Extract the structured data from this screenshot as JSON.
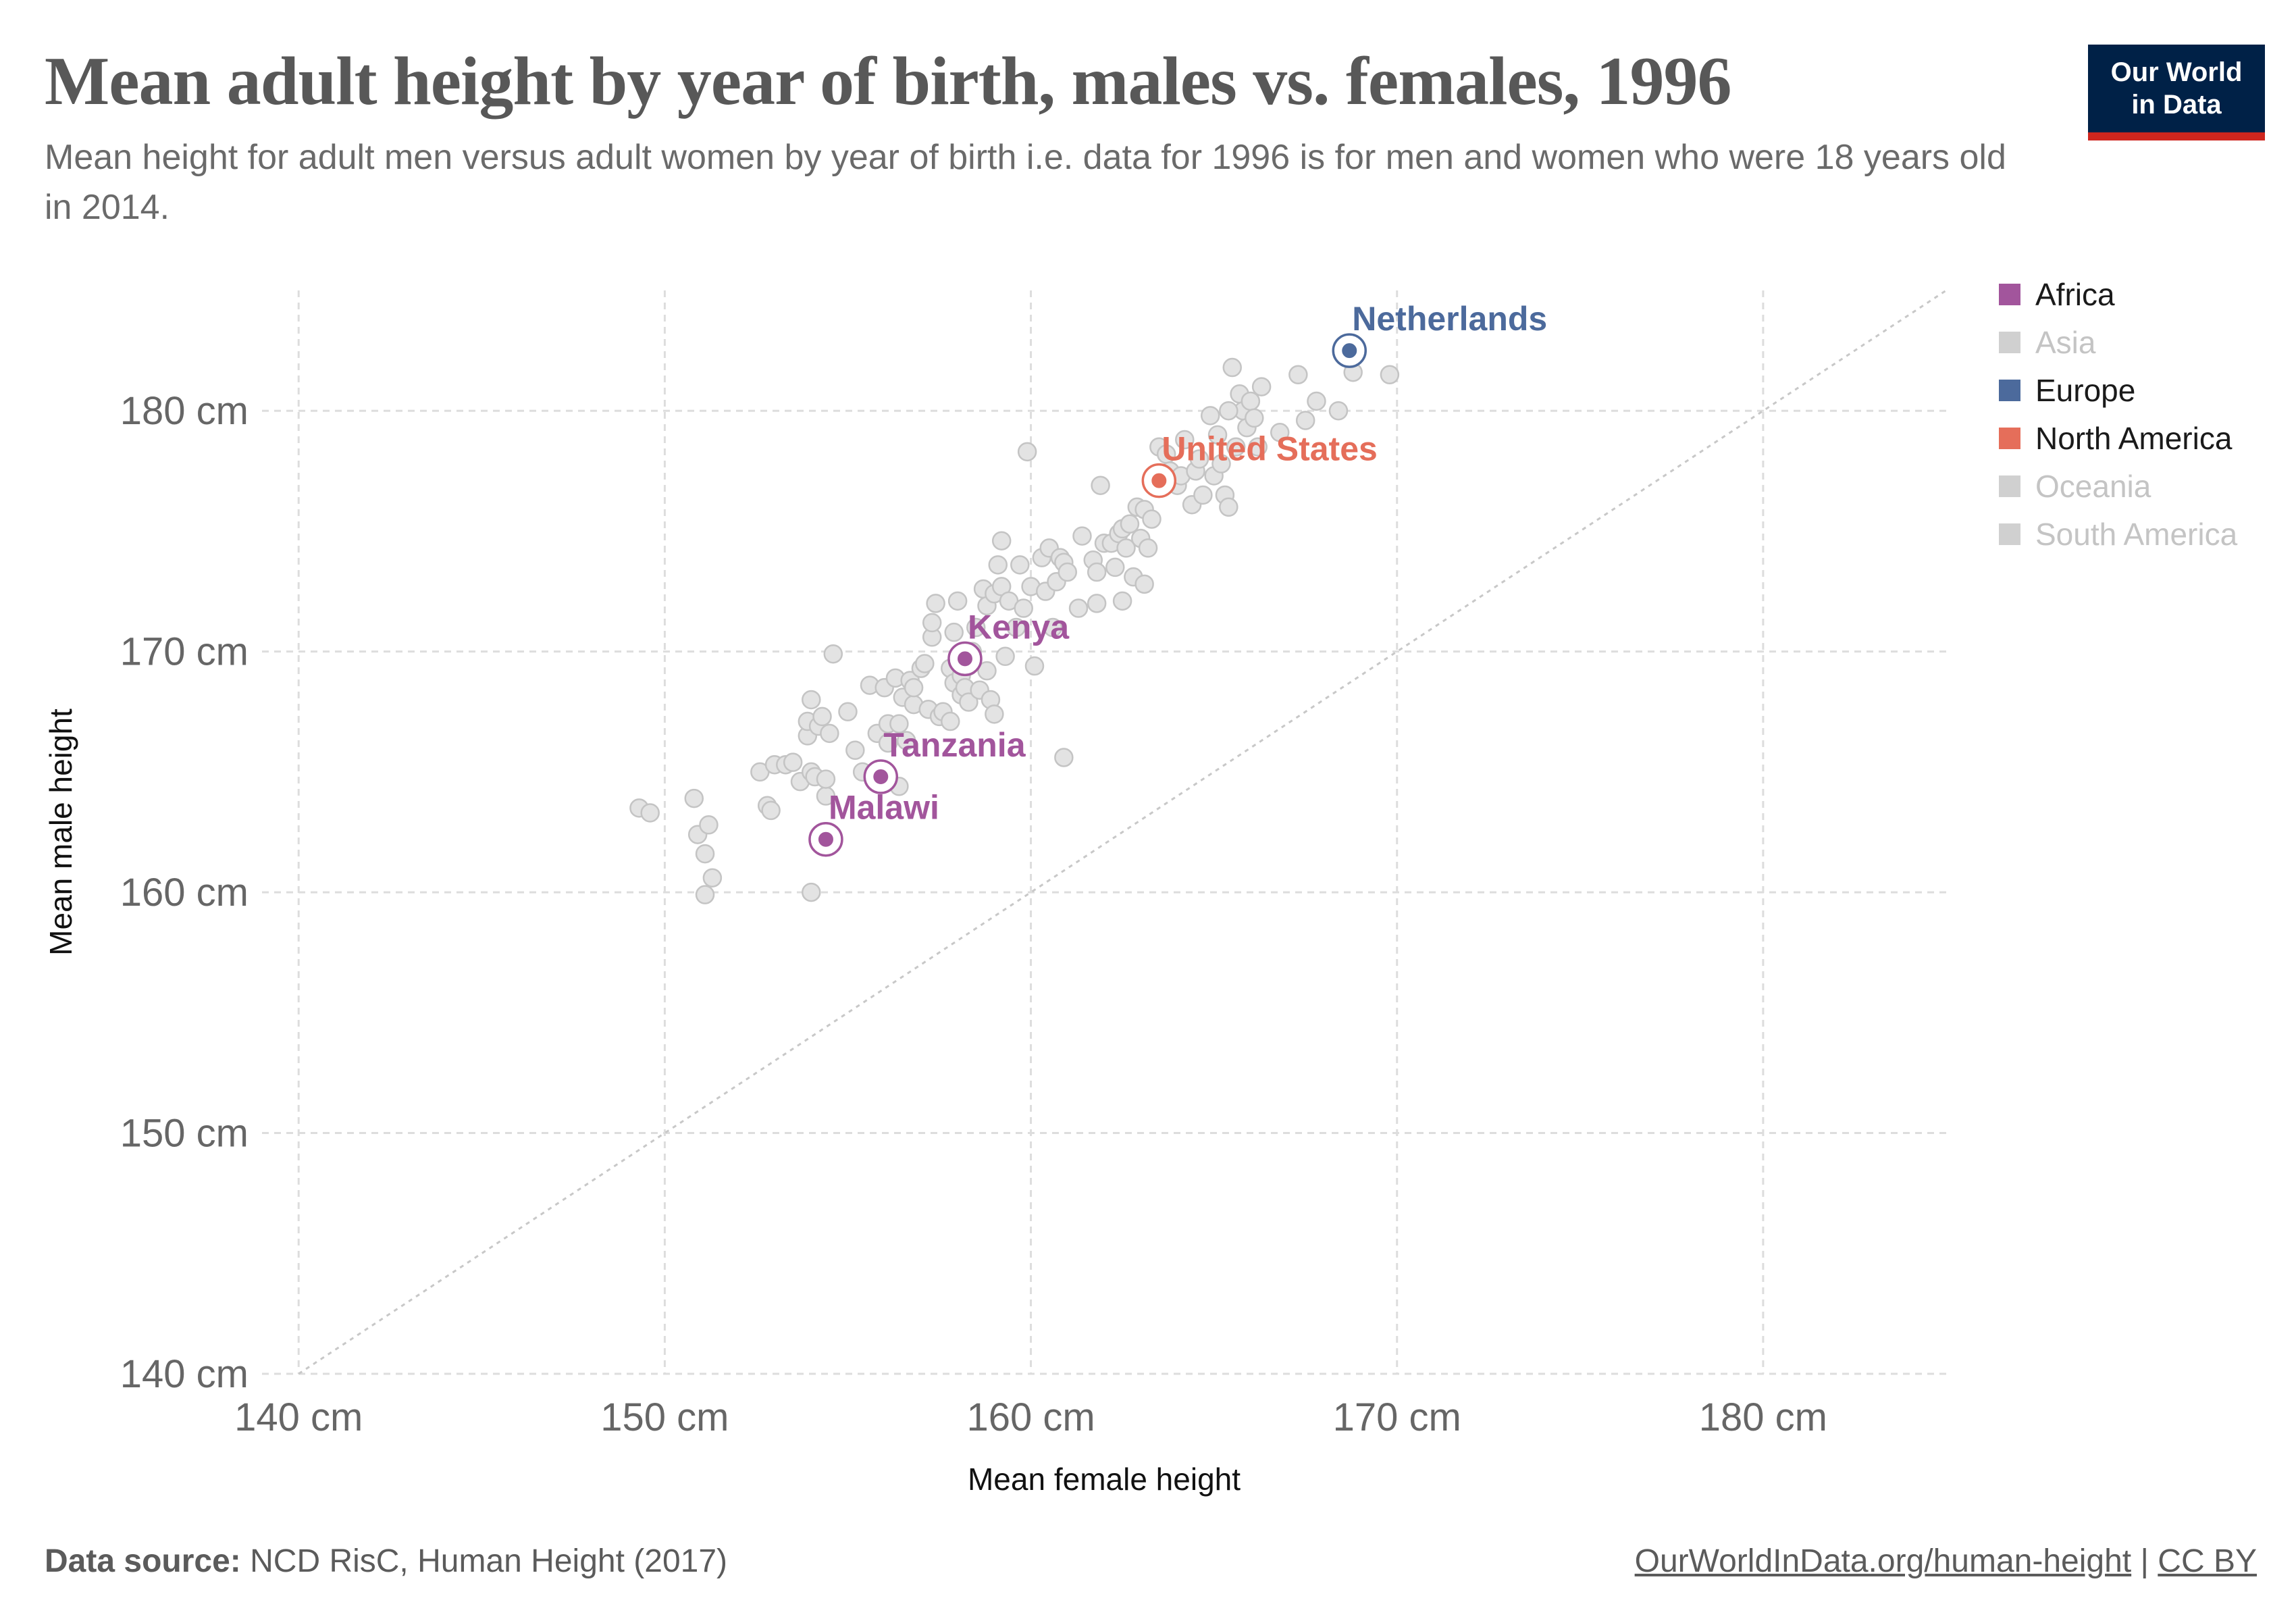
{
  "header": {
    "title": "Mean adult height by year of birth, males vs. females, 1996",
    "subtitle": "Mean height for adult men versus adult women by year of birth i.e. data for 1996 is for men and women who were 18 years old in 2014."
  },
  "logo": {
    "text": "Our World\nin Data",
    "bg_color": "#002147",
    "accent_color": "#ce261e"
  },
  "legend": {
    "items": [
      {
        "label": "Africa",
        "color": "#a2559c",
        "active": true
      },
      {
        "label": "Asia",
        "color": "#d0d0d0",
        "active": false
      },
      {
        "label": "Europe",
        "color": "#4c6a9c",
        "active": true
      },
      {
        "label": "North America",
        "color": "#e56e5a",
        "active": true
      },
      {
        "label": "Oceania",
        "color": "#d0d0d0",
        "active": false
      },
      {
        "label": "South America",
        "color": "#d0d0d0",
        "active": false
      }
    ]
  },
  "footer": {
    "source_label": "Data source:",
    "source_text": "NCD RisC, Human Height (2017)",
    "link_text": "OurWorldInData.org/human-height",
    "separator": "|",
    "license_text": "CC BY"
  },
  "chart_data": {
    "type": "scatter",
    "xlabel": "Mean female height",
    "ylabel": "Mean male height",
    "xlim": [
      139,
      185
    ],
    "ylim": [
      140,
      185
    ],
    "x_ticks": [
      140,
      150,
      160,
      170,
      180
    ],
    "y_ticks": [
      140,
      150,
      160,
      170,
      180
    ],
    "x_tick_labels": [
      "140 cm",
      "150 cm",
      "160 cm",
      "170 cm",
      "180 cm"
    ],
    "y_tick_labels": [
      "140 cm",
      "150 cm",
      "160 cm",
      "170 cm",
      "180 cm"
    ],
    "grid": true,
    "reference_line": "y = x",
    "highlighted": [
      {
        "label": "Netherlands",
        "x": 168.7,
        "y": 182.5,
        "color": "#4c6a9c"
      },
      {
        "label": "United States",
        "x": 163.5,
        "y": 177.1,
        "color": "#e56e5a"
      },
      {
        "label": "Kenya",
        "x": 158.2,
        "y": 169.7,
        "color": "#a2559c"
      },
      {
        "label": "Tanzania",
        "x": 155.9,
        "y": 164.8,
        "color": "#a2559c"
      },
      {
        "label": "Malawi",
        "x": 154.4,
        "y": 162.2,
        "color": "#a2559c"
      }
    ],
    "background_points": [
      [
        149.3,
        163.5
      ],
      [
        149.6,
        163.3
      ],
      [
        150.8,
        163.9
      ],
      [
        150.9,
        162.4
      ],
      [
        151.2,
        162.8
      ],
      [
        151.1,
        161.6
      ],
      [
        151.3,
        160.6
      ],
      [
        151.1,
        159.9
      ],
      [
        152.6,
        165.0
      ],
      [
        152.8,
        163.6
      ],
      [
        152.9,
        163.4
      ],
      [
        153.0,
        165.3
      ],
      [
        153.3,
        165.3
      ],
      [
        153.5,
        165.4
      ],
      [
        153.7,
        164.6
      ],
      [
        153.9,
        166.5
      ],
      [
        153.9,
        167.1
      ],
      [
        154.0,
        168.0
      ],
      [
        154.0,
        165.0
      ],
      [
        154.1,
        164.8
      ],
      [
        154.2,
        166.9
      ],
      [
        154.3,
        167.3
      ],
      [
        154.4,
        164.0
      ],
      [
        154.5,
        166.6
      ],
      [
        154.4,
        164.7
      ],
      [
        154.6,
        169.9
      ],
      [
        154.0,
        160.0
      ],
      [
        155.0,
        167.5
      ],
      [
        155.2,
        165.9
      ],
      [
        155.4,
        165.0
      ],
      [
        155.6,
        168.6
      ],
      [
        155.8,
        166.6
      ],
      [
        156.0,
        168.5
      ],
      [
        156.1,
        167.0
      ],
      [
        156.1,
        166.2
      ],
      [
        156.3,
        168.9
      ],
      [
        156.4,
        167.0
      ],
      [
        156.4,
        164.4
      ],
      [
        156.5,
        168.1
      ],
      [
        156.6,
        166.3
      ],
      [
        156.7,
        168.8
      ],
      [
        156.8,
        167.8
      ],
      [
        156.8,
        168.5
      ],
      [
        157.0,
        169.3
      ],
      [
        157.1,
        169.5
      ],
      [
        157.2,
        167.6
      ],
      [
        157.3,
        170.6
      ],
      [
        157.3,
        171.2
      ],
      [
        157.4,
        172.0
      ],
      [
        157.5,
        167.3
      ],
      [
        157.6,
        167.5
      ],
      [
        157.8,
        167.1
      ],
      [
        157.8,
        169.3
      ],
      [
        157.9,
        168.7
      ],
      [
        157.9,
        170.8
      ],
      [
        158.0,
        172.1
      ],
      [
        158.1,
        168.2
      ],
      [
        158.1,
        169.0
      ],
      [
        158.2,
        168.5
      ],
      [
        158.3,
        169.4
      ],
      [
        158.3,
        167.9
      ],
      [
        158.4,
        170.0
      ],
      [
        158.5,
        171.0
      ],
      [
        158.6,
        168.4
      ],
      [
        158.7,
        172.6
      ],
      [
        158.8,
        171.9
      ],
      [
        158.8,
        169.2
      ],
      [
        158.9,
        168.0
      ],
      [
        159.0,
        167.4
      ],
      [
        159.0,
        172.4
      ],
      [
        159.1,
        173.6
      ],
      [
        159.2,
        172.7
      ],
      [
        159.2,
        174.6
      ],
      [
        159.3,
        169.8
      ],
      [
        159.4,
        172.1
      ],
      [
        159.6,
        171.0
      ],
      [
        159.7,
        173.6
      ],
      [
        159.8,
        171.8
      ],
      [
        160.0,
        172.7
      ],
      [
        159.9,
        178.3
      ],
      [
        160.1,
        169.4
      ],
      [
        160.3,
        173.9
      ],
      [
        160.4,
        172.5
      ],
      [
        160.5,
        174.3
      ],
      [
        160.6,
        171.0
      ],
      [
        160.7,
        172.9
      ],
      [
        160.8,
        173.9
      ],
      [
        160.9,
        173.7
      ],
      [
        161.0,
        173.3
      ],
      [
        160.9,
        165.6
      ],
      [
        161.3,
        171.8
      ],
      [
        161.4,
        174.8
      ],
      [
        161.7,
        173.8
      ],
      [
        161.8,
        173.3
      ],
      [
        161.8,
        172.0
      ],
      [
        161.9,
        176.9
      ],
      [
        162.0,
        174.5
      ],
      [
        162.2,
        174.5
      ],
      [
        162.3,
        173.5
      ],
      [
        162.4,
        174.9
      ],
      [
        162.5,
        175.1
      ],
      [
        162.5,
        172.1
      ],
      [
        162.6,
        174.3
      ],
      [
        162.7,
        175.3
      ],
      [
        162.8,
        173.1
      ],
      [
        162.9,
        176.0
      ],
      [
        163.0,
        174.7
      ],
      [
        163.1,
        175.9
      ],
      [
        163.1,
        172.8
      ],
      [
        163.2,
        174.3
      ],
      [
        163.3,
        175.5
      ],
      [
        163.5,
        178.5
      ],
      [
        163.7,
        178.2
      ],
      [
        163.8,
        177.5
      ],
      [
        164.0,
        176.9
      ],
      [
        164.1,
        177.3
      ],
      [
        164.2,
        178.8
      ],
      [
        164.4,
        176.1
      ],
      [
        164.5,
        177.5
      ],
      [
        164.6,
        178.0
      ],
      [
        164.7,
        176.5
      ],
      [
        164.9,
        179.8
      ],
      [
        165.0,
        177.3
      ],
      [
        165.1,
        179.0
      ],
      [
        165.2,
        177.8
      ],
      [
        165.3,
        176.5
      ],
      [
        165.4,
        176.0
      ],
      [
        165.5,
        181.8
      ],
      [
        165.6,
        178.5
      ],
      [
        165.7,
        180.7
      ],
      [
        165.8,
        180.0
      ],
      [
        165.9,
        179.3
      ],
      [
        166.0,
        180.4
      ],
      [
        166.1,
        179.7
      ],
      [
        166.2,
        178.5
      ],
      [
        166.3,
        181.0
      ],
      [
        166.8,
        179.1
      ],
      [
        167.3,
        181.5
      ],
      [
        167.5,
        179.6
      ],
      [
        167.8,
        180.4
      ],
      [
        168.4,
        180.0
      ],
      [
        168.8,
        181.6
      ],
      [
        169.8,
        181.5
      ],
      [
        165.4,
        180.0
      ]
    ]
  }
}
